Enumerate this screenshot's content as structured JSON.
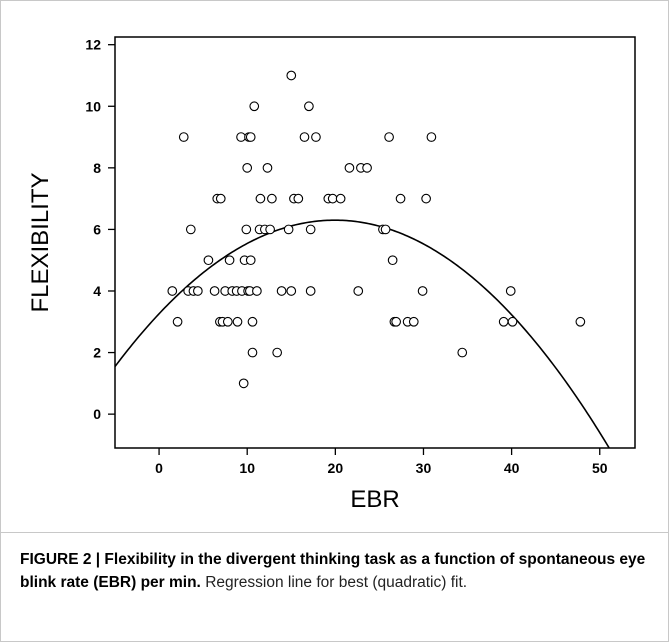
{
  "chart_data": {
    "type": "scatter",
    "xlabel": "EBR",
    "ylabel": "FLEXIBILITY",
    "xlim": [
      -5,
      54
    ],
    "ylim": [
      -1.1,
      12.25
    ],
    "xticks": [
      0,
      10,
      20,
      30,
      40,
      50
    ],
    "yticks": [
      0,
      2,
      4,
      6,
      8,
      10,
      12
    ],
    "grid": false,
    "legend": "none",
    "marker": "open-circle",
    "series": [
      {
        "points": [
          [
            1.5,
            4
          ],
          [
            2.1,
            3
          ],
          [
            2.8,
            9
          ],
          [
            3.3,
            4
          ],
          [
            3.6,
            6
          ],
          [
            3.9,
            4
          ],
          [
            4.4,
            4
          ],
          [
            5.6,
            5
          ],
          [
            6.3,
            4
          ],
          [
            6.6,
            7
          ],
          [
            6.9,
            3
          ],
          [
            7.0,
            7
          ],
          [
            7.2,
            3
          ],
          [
            7.5,
            4
          ],
          [
            7.8,
            3
          ],
          [
            8.0,
            5
          ],
          [
            8.3,
            4
          ],
          [
            8.8,
            4
          ],
          [
            8.9,
            3
          ],
          [
            9.3,
            9
          ],
          [
            9.4,
            4
          ],
          [
            9.6,
            1
          ],
          [
            9.7,
            5
          ],
          [
            9.9,
            6
          ],
          [
            10.0,
            8
          ],
          [
            10.1,
            4
          ],
          [
            10.2,
            9
          ],
          [
            10.3,
            4
          ],
          [
            10.4,
            5
          ],
          [
            10.4,
            9
          ],
          [
            10.6,
            2
          ],
          [
            10.6,
            3
          ],
          [
            10.8,
            10
          ],
          [
            11.1,
            4
          ],
          [
            11.4,
            6
          ],
          [
            11.5,
            7
          ],
          [
            12.0,
            6
          ],
          [
            12.3,
            8
          ],
          [
            12.6,
            6
          ],
          [
            12.8,
            7
          ],
          [
            13.4,
            2
          ],
          [
            13.9,
            4
          ],
          [
            14.7,
            6
          ],
          [
            15.0,
            4
          ],
          [
            15.0,
            11
          ],
          [
            15.3,
            7
          ],
          [
            15.8,
            7
          ],
          [
            16.5,
            9
          ],
          [
            17.0,
            10
          ],
          [
            17.2,
            4
          ],
          [
            17.2,
            6
          ],
          [
            17.8,
            9
          ],
          [
            19.2,
            7
          ],
          [
            19.7,
            7
          ],
          [
            20.6,
            7
          ],
          [
            21.6,
            8
          ],
          [
            22.6,
            4
          ],
          [
            22.9,
            8
          ],
          [
            23.6,
            8
          ],
          [
            25.4,
            6
          ],
          [
            25.7,
            6
          ],
          [
            26.1,
            9
          ],
          [
            26.5,
            5
          ],
          [
            26.7,
            3
          ],
          [
            26.9,
            3
          ],
          [
            27.4,
            7
          ],
          [
            28.2,
            3
          ],
          [
            28.9,
            3
          ],
          [
            29.9,
            4
          ],
          [
            30.3,
            7
          ],
          [
            30.9,
            9
          ],
          [
            34.4,
            2
          ],
          [
            39.1,
            3
          ],
          [
            39.9,
            4
          ],
          [
            40.1,
            3
          ],
          [
            47.8,
            3
          ]
        ]
      }
    ],
    "fit": {
      "type": "quadratic",
      "coefficients": {
        "a": -0.00764,
        "b": 0.3048,
        "c": 3.26
      }
    }
  },
  "caption": {
    "bold": "FIGURE 2 | Flexibility in the divergent thinking task as a function of spontaneous eye blink rate (EBR) per min.",
    "text": "Regression line for best (quadratic) fit."
  }
}
